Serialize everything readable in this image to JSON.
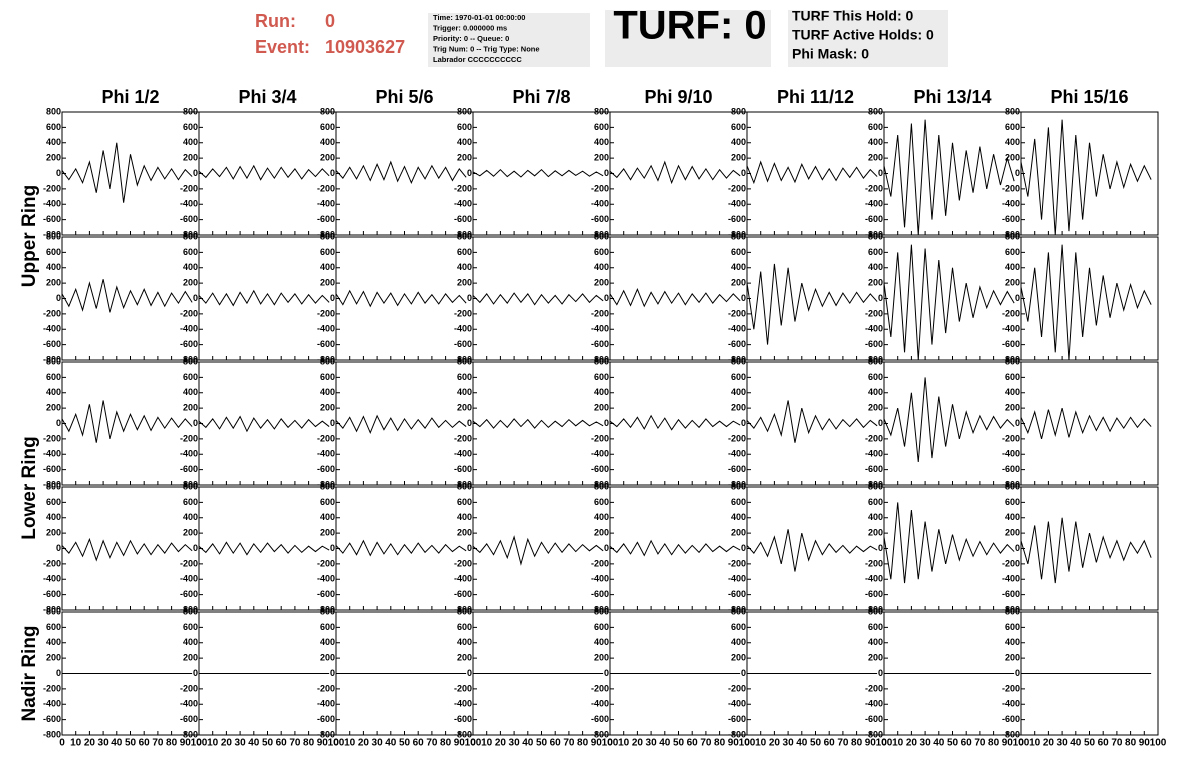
{
  "header": {
    "run_label": "Run:",
    "run": "0",
    "event_label": "Event:",
    "event": "10903627",
    "info": [
      "Time: 1970-01-01 00:00:00",
      "Trigger: 0.000000 ms",
      "Priority: 0 -- Queue: 0",
      "Trig Num: 0 -- Trig Type: None",
      "Labrador CCCCCCCCCC"
    ],
    "turf": "TURF: 0",
    "turf_info": [
      "TURF This Hold: 0",
      "TURF Active Holds: 0",
      "Phi Mask: 0"
    ]
  },
  "columns": [
    "Phi 1/2",
    "Phi 3/4",
    "Phi 5/6",
    "Phi 7/8",
    "Phi 9/10",
    "Phi 11/12",
    "Phi 13/14",
    "Phi 15/16"
  ],
  "ring_labels": [
    "Upper Ring",
    "Lower Ring",
    "Nadir Ring"
  ],
  "chart_data": {
    "type": "line",
    "color": "#000000",
    "xlim": [
      0,
      100
    ],
    "xticks": [
      0,
      10,
      20,
      30,
      40,
      50,
      60,
      70,
      80,
      90,
      100
    ],
    "ylim": [
      -800,
      800
    ],
    "yticks": [
      -800,
      -600,
      -400,
      -200,
      0,
      200,
      400,
      600,
      800
    ],
    "x": [
      0,
      5,
      10,
      15,
      20,
      25,
      30,
      35,
      40,
      45,
      50,
      55,
      60,
      65,
      70,
      75,
      80,
      85,
      90,
      95
    ],
    "rows": [
      {
        "series": [
          {
            "values": [
              40,
              -80,
              60,
              -120,
              150,
              -250,
              300,
              -200,
              400,
              -380,
              250,
              -150,
              100,
              -90,
              80,
              -70,
              60,
              -80,
              50,
              -40
            ]
          },
          {
            "values": [
              30,
              -50,
              60,
              -40,
              80,
              -70,
              90,
              -60,
              100,
              -80,
              70,
              -60,
              80,
              -50,
              60,
              -70,
              50,
              -40,
              60,
              -30
            ]
          },
          {
            "values": [
              40,
              -60,
              80,
              -70,
              100,
              -90,
              120,
              -80,
              150,
              -100,
              90,
              -120,
              80,
              -70,
              100,
              -60,
              80,
              -90,
              60,
              -50
            ]
          },
          {
            "values": [
              20,
              -30,
              40,
              -35,
              50,
              -40,
              30,
              -45,
              40,
              -30,
              50,
              -40,
              35,
              -30,
              40,
              -25,
              30,
              -35,
              20,
              -30
            ]
          },
          {
            "values": [
              30,
              -50,
              60,
              -80,
              70,
              -60,
              100,
              -90,
              150,
              -120,
              100,
              -80,
              90,
              -70,
              60,
              -80,
              50,
              -60,
              40,
              -30
            ]
          },
          {
            "values": [
              100,
              -120,
              150,
              -100,
              130,
              -90,
              80,
              -110,
              120,
              -70,
              90,
              -80,
              60,
              -90,
              70,
              -50,
              80,
              -60,
              50,
              -40
            ]
          },
          {
            "values": [
              100,
              -300,
              500,
              -700,
              650,
              -800,
              700,
              -600,
              500,
              -550,
              400,
              -350,
              300,
              -250,
              350,
              -200,
              250,
              -150,
              200,
              -100
            ]
          },
          {
            "values": [
              150,
              -300,
              450,
              -600,
              600,
              -800,
              700,
              -750,
              500,
              -600,
              400,
              -300,
              250,
              -200,
              150,
              -180,
              120,
              -100,
              100,
              -80
            ]
          }
        ]
      },
      {
        "series": [
          {
            "values": [
              60,
              -100,
              120,
              -150,
              200,
              -130,
              250,
              -180,
              150,
              -120,
              100,
              -80,
              120,
              -90,
              80,
              -100,
              70,
              -60,
              90,
              -50
            ]
          },
          {
            "values": [
              40,
              -60,
              70,
              -80,
              60,
              -90,
              80,
              -60,
              100,
              -70,
              60,
              -80,
              70,
              -50,
              60,
              -70,
              50,
              -60,
              40,
              -50
            ]
          },
          {
            "values": [
              60,
              -80,
              100,
              -70,
              90,
              -100,
              80,
              -60,
              70,
              -90,
              60,
              -70,
              80,
              -60,
              50,
              -70,
              60,
              -50,
              40,
              -60
            ]
          },
          {
            "values": [
              40,
              -50,
              60,
              -70,
              50,
              -60,
              70,
              -50,
              60,
              -80,
              50,
              -60,
              40,
              -70,
              50,
              -40,
              60,
              -50,
              40,
              -30
            ]
          },
          {
            "values": [
              60,
              -80,
              100,
              -90,
              120,
              -100,
              80,
              -70,
              90,
              -60,
              70,
              -80,
              60,
              -50,
              70,
              -60,
              50,
              -40,
              60,
              -30
            ]
          },
          {
            "values": [
              200,
              -400,
              350,
              -600,
              450,
              -350,
              400,
              -300,
              200,
              -150,
              120,
              -100,
              80,
              -90,
              70,
              -60,
              80,
              -50,
              60,
              -40
            ]
          },
          {
            "values": [
              200,
              -500,
              600,
              -700,
              700,
              -800,
              650,
              -600,
              500,
              -450,
              400,
              -300,
              200,
              -250,
              150,
              -120,
              100,
              -80,
              90,
              -60
            ]
          },
          {
            "values": [
              150,
              -300,
              400,
              -500,
              600,
              -700,
              700,
              -800,
              600,
              -500,
              400,
              -350,
              300,
              -250,
              200,
              -150,
              180,
              -120,
              100,
              -80
            ]
          }
        ]
      },
      {
        "series": [
          {
            "values": [
              60,
              -100,
              120,
              -150,
              250,
              -250,
              300,
              -200,
              150,
              -100,
              120,
              -80,
              100,
              -90,
              80,
              -60,
              70,
              -50,
              60,
              -40
            ]
          },
          {
            "values": [
              30,
              -50,
              60,
              -70,
              80,
              -60,
              90,
              -100,
              70,
              -60,
              50,
              -70,
              60,
              -50,
              40,
              -60,
              50,
              -40,
              30,
              -40
            ]
          },
          {
            "values": [
              40,
              -60,
              80,
              -100,
              90,
              -120,
              100,
              -80,
              70,
              -90,
              60,
              -70,
              50,
              -60,
              70,
              -50,
              40,
              -50,
              30,
              -40
            ]
          },
          {
            "values": [
              30,
              -40,
              50,
              -60,
              40,
              -50,
              60,
              -40,
              50,
              -60,
              40,
              -50,
              30,
              -40,
              50,
              -30,
              40,
              -30,
              20,
              -30
            ]
          },
          {
            "values": [
              30,
              -40,
              60,
              -50,
              80,
              -70,
              100,
              -60,
              70,
              -80,
              50,
              -60,
              40,
              -50,
              60,
              -40,
              30,
              -40,
              30,
              -20
            ]
          },
          {
            "values": [
              40,
              -60,
              80,
              -100,
              120,
              -150,
              300,
              -250,
              200,
              -120,
              100,
              -80,
              60,
              -70,
              50,
              -40,
              60,
              -50,
              40,
              -30
            ]
          },
          {
            "values": [
              60,
              -150,
              200,
              -300,
              400,
              -500,
              600,
              -450,
              350,
              -300,
              250,
              -200,
              150,
              -120,
              100,
              -80,
              90,
              -60,
              50,
              -40
            ]
          },
          {
            "values": [
              80,
              -120,
              150,
              -200,
              180,
              -150,
              200,
              -180,
              150,
              -120,
              100,
              -90,
              80,
              -100,
              70,
              -60,
              80,
              -50,
              60,
              -40
            ]
          }
        ]
      },
      {
        "series": [
          {
            "values": [
              40,
              -60,
              80,
              -100,
              120,
              -150,
              100,
              -120,
              80,
              -90,
              100,
              -70,
              60,
              -80,
              50,
              -60,
              70,
              -40,
              50,
              -30
            ]
          },
          {
            "values": [
              30,
              -50,
              60,
              -70,
              80,
              -60,
              70,
              -80,
              60,
              -50,
              70,
              -40,
              50,
              -60,
              40,
              -50,
              30,
              -40,
              30,
              -20
            ]
          },
          {
            "values": [
              40,
              -60,
              70,
              -80,
              100,
              -90,
              80,
              -70,
              60,
              -80,
              50,
              -60,
              70,
              -50,
              40,
              -60,
              50,
              -40,
              30,
              -30
            ]
          },
          {
            "values": [
              30,
              -50,
              60,
              -80,
              100,
              -120,
              150,
              -200,
              120,
              -100,
              80,
              -60,
              70,
              -50,
              60,
              -40,
              50,
              -30,
              40,
              -30
            ]
          },
          {
            "values": [
              30,
              -50,
              60,
              -70,
              80,
              -90,
              100,
              -70,
              60,
              -80,
              50,
              -60,
              40,
              -50,
              60,
              -40,
              30,
              -40,
              30,
              -20
            ]
          },
          {
            "values": [
              40,
              -60,
              80,
              -100,
              150,
              -200,
              250,
              -300,
              200,
              -150,
              100,
              -80,
              60,
              -50,
              40,
              -60,
              30,
              -40,
              30,
              -20
            ]
          },
          {
            "values": [
              150,
              -400,
              600,
              -450,
              500,
              -400,
              350,
              -300,
              250,
              -200,
              180,
              -150,
              120,
              -100,
              90,
              -80,
              70,
              -60,
              50,
              -40
            ]
          },
          {
            "values": [
              100,
              -200,
              300,
              -400,
              350,
              -450,
              400,
              -300,
              350,
              -250,
              200,
              -180,
              150,
              -120,
              100,
              -150,
              80,
              -60,
              100,
              -120
            ]
          }
        ]
      },
      {
        "series": [
          {
            "values": [
              0,
              0,
              0,
              0,
              0,
              0,
              0,
              0,
              0,
              0,
              0,
              0,
              0,
              0,
              0,
              0,
              0,
              0,
              0,
              0
            ]
          },
          {
            "values": [
              0,
              0,
              0,
              0,
              0,
              0,
              0,
              0,
              0,
              0,
              0,
              0,
              0,
              0,
              0,
              0,
              0,
              0,
              0,
              0
            ]
          },
          {
            "values": [
              0,
              0,
              0,
              0,
              0,
              0,
              0,
              0,
              0,
              0,
              0,
              0,
              0,
              0,
              0,
              0,
              0,
              0,
              0,
              0
            ]
          },
          {
            "values": [
              0,
              0,
              0,
              0,
              0,
              0,
              0,
              0,
              0,
              0,
              0,
              0,
              0,
              0,
              0,
              0,
              0,
              0,
              0,
              0
            ]
          },
          {
            "values": [
              0,
              0,
              0,
              0,
              0,
              0,
              0,
              0,
              0,
              0,
              0,
              0,
              0,
              0,
              0,
              0,
              0,
              0,
              0,
              0
            ]
          },
          {
            "values": [
              0,
              0,
              0,
              0,
              0,
              0,
              0,
              0,
              0,
              0,
              0,
              0,
              0,
              0,
              0,
              0,
              0,
              0,
              0,
              0
            ]
          },
          {
            "values": [
              0,
              0,
              0,
              0,
              0,
              0,
              0,
              0,
              0,
              0,
              0,
              0,
              0,
              0,
              0,
              0,
              0,
              0,
              0,
              0
            ]
          },
          {
            "values": [
              0,
              0,
              0,
              0,
              0,
              0,
              0,
              0,
              0,
              0,
              0,
              0,
              0,
              0,
              0,
              0,
              0,
              0,
              0,
              0
            ]
          }
        ]
      }
    ]
  }
}
